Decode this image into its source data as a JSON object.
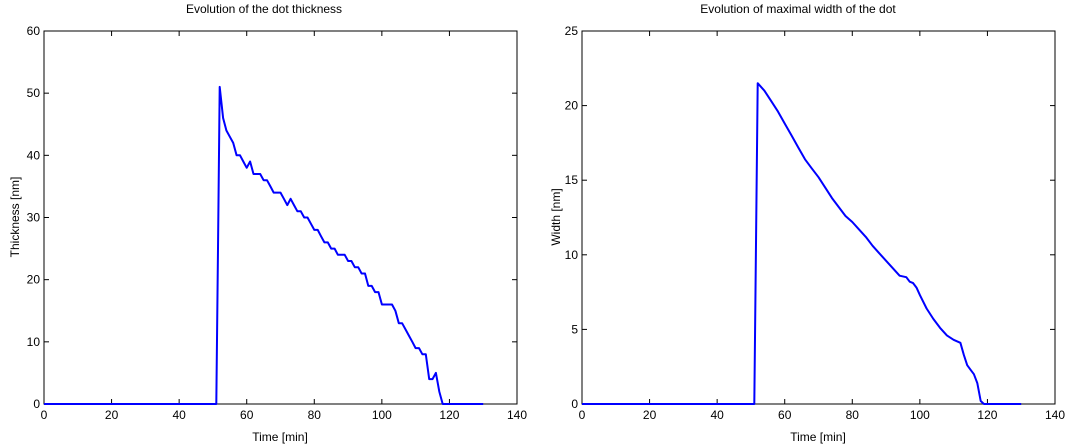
{
  "chart_data": [
    {
      "type": "line",
      "title": "Evolution of the dot thickness",
      "xlabel": "Time [min]",
      "ylabel": "Thickness [nm]",
      "xlim": [
        0,
        140
      ],
      "ylim": [
        0,
        60
      ],
      "xticks": [
        0,
        20,
        40,
        60,
        80,
        100,
        120,
        140
      ],
      "yticks": [
        0,
        10,
        20,
        30,
        40,
        50,
        60
      ],
      "grid": false,
      "color": "#0000ff",
      "series": [
        {
          "x": [
            0,
            51,
            51.5,
            52,
            53,
            54,
            55,
            56,
            57,
            58,
            59,
            60,
            61,
            62,
            63,
            64,
            65,
            66,
            67,
            68,
            69,
            70,
            71,
            72,
            73,
            74,
            75,
            76,
            77,
            78,
            79,
            80,
            81,
            82,
            83,
            84,
            85,
            86,
            87,
            88,
            89,
            90,
            91,
            92,
            93,
            94,
            95,
            96,
            97,
            98,
            99,
            100,
            101,
            102,
            103,
            104,
            105,
            106,
            107,
            108,
            109,
            110,
            111,
            112,
            113,
            114,
            115,
            116,
            117,
            118,
            119,
            130
          ],
          "y": [
            0,
            0,
            25,
            51,
            46,
            44,
            43,
            42,
            40,
            40,
            39,
            38,
            39,
            37,
            37,
            37,
            36,
            36,
            35,
            34,
            34,
            34,
            33,
            32,
            33,
            32,
            31,
            31,
            30,
            30,
            29,
            28,
            28,
            27,
            26,
            26,
            25,
            25,
            24,
            24,
            24,
            23,
            23,
            22,
            22,
            21,
            21,
            19,
            19,
            18,
            18,
            16,
            16,
            16,
            16,
            15,
            13,
            13,
            12,
            11,
            10,
            9,
            9,
            8,
            8,
            4,
            4,
            5,
            2,
            0,
            0,
            0
          ]
        }
      ]
    },
    {
      "type": "line",
      "title": "Evolution of maximal width of the dot",
      "xlabel": "Time [min]",
      "ylabel": "Width [nm]",
      "xlim": [
        0,
        140
      ],
      "ylim": [
        0,
        25
      ],
      "xticks": [
        0,
        20,
        40,
        60,
        80,
        100,
        120,
        140
      ],
      "yticks": [
        0,
        5,
        10,
        15,
        20,
        25
      ],
      "grid": false,
      "color": "#0000ff",
      "series": [
        {
          "x": [
            0,
            51,
            52,
            54,
            56,
            58,
            60,
            62,
            64,
            66,
            68,
            70,
            72,
            74,
            76,
            78,
            80,
            82,
            84,
            86,
            88,
            90,
            92,
            94,
            96,
            97,
            98,
            99,
            100,
            102,
            104,
            106,
            108,
            110,
            111,
            112,
            113,
            114,
            115,
            116,
            117,
            118,
            119,
            130
          ],
          "y": [
            0,
            0,
            21.5,
            21,
            20.3,
            19.6,
            18.8,
            18,
            17.2,
            16.4,
            15.8,
            15.2,
            14.5,
            13.8,
            13.2,
            12.6,
            12.2,
            11.7,
            11.2,
            10.6,
            10.1,
            9.6,
            9.1,
            8.6,
            8.5,
            8.2,
            8.1,
            7.8,
            7.3,
            6.4,
            5.7,
            5.1,
            4.6,
            4.3,
            4.2,
            4.1,
            3.3,
            2.6,
            2.3,
            2,
            1.4,
            0.2,
            0,
            0
          ]
        }
      ]
    }
  ]
}
